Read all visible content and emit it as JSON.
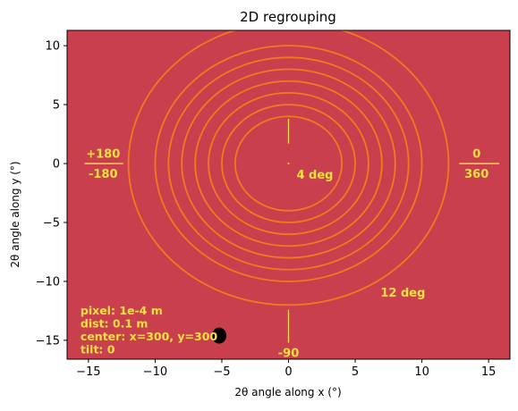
{
  "chart_data": {
    "type": "heatmap",
    "title": "2D regrouping",
    "xlabel": "2θ angle along x (°)",
    "ylabel": "2θ angle along y (°)",
    "xlim": [
      -16.6,
      16.6
    ],
    "ylim": [
      -16.6,
      11.3
    ],
    "xticks": [
      -15,
      -10,
      -5,
      0,
      5,
      10,
      15
    ],
    "yticks": [
      -15,
      -10,
      -5,
      0,
      5,
      10
    ],
    "grid": false,
    "colors": {
      "background": "#c93f4e",
      "rings": "#f07a1c",
      "annotation": "#ffe04a"
    },
    "ring_radii": [
      4,
      5,
      6,
      7,
      8,
      9,
      10,
      12
    ],
    "annotations": {
      "right_top": "0",
      "right_bottom": "360",
      "left_top": "+180",
      "left_bottom": "-180",
      "bottom": "-90",
      "inner_ring": "4 deg",
      "outer_ring": "12 deg"
    },
    "info_lines": [
      "pixel: 1e-4 m",
      "dist: 0.1 m",
      "center: x=300, y=300",
      "tilt: 0"
    ]
  }
}
